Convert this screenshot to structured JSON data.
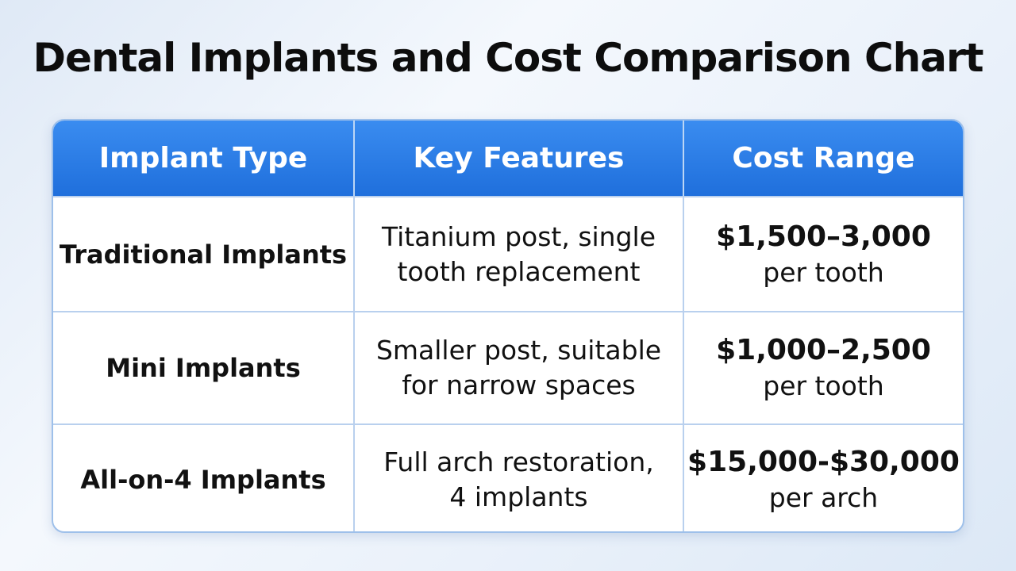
{
  "title": "Dental Implants and Cost Comparison Chart",
  "table": {
    "header": [
      "Implant Type",
      "Key Features",
      "Cost Range"
    ],
    "rows": [
      {
        "type": "Traditional Implants",
        "features": [
          "Titanium post, single",
          "tooth replacement"
        ],
        "cost": "$1,500–3,000",
        "unit": "per tooth"
      },
      {
        "type": "Mini Implants",
        "features": [
          "Smaller post, suitable",
          "for narrow spaces"
        ],
        "cost": "$1,000–2,500",
        "unit": "per tooth"
      },
      {
        "type": "All-on-4 Implants",
        "features": [
          "Full arch restoration,",
          "4 implants"
        ],
        "cost": "$15,000-$30,000",
        "unit": "per arch"
      }
    ]
  }
}
